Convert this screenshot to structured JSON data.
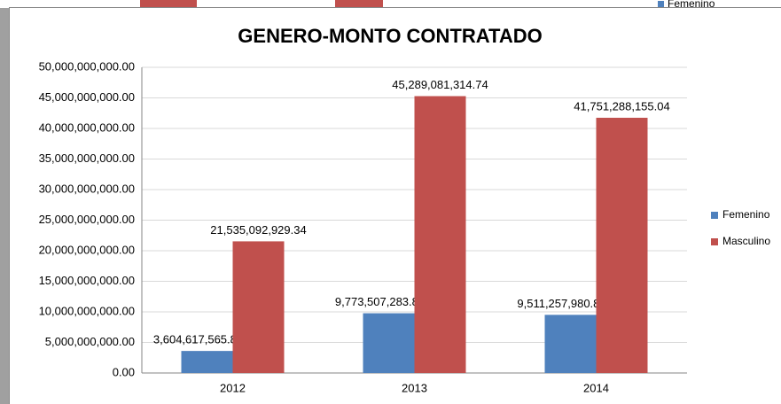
{
  "background": {
    "legend_label": "Femenino"
  },
  "chart_data": {
    "type": "bar",
    "title": "GENERO-MONTO CONTRATADO",
    "categories": [
      "2012",
      "2013",
      "2014"
    ],
    "series": [
      {
        "name": "Femenino",
        "color": "#4f81bd",
        "values": [
          3604617565.86,
          9773507283.8,
          9511257980.87
        ],
        "value_labels": [
          "3,604,617,565.86",
          "9,773,507,283.80",
          "9,511,257,980.87"
        ]
      },
      {
        "name": "Masculino",
        "color": "#c0504d",
        "values": [
          21535092929.34,
          45289081314.74,
          41751288155.04
        ],
        "value_labels": [
          "21,535,092,929.34",
          "45,289,081,314.74",
          "41,751,288,155.04"
        ]
      }
    ],
    "ylim": [
      0,
      50000000000
    ],
    "yticks": [
      {
        "value": 0,
        "label": "0.00"
      },
      {
        "value": 5000000000,
        "label": "5,000,000,000.00"
      },
      {
        "value": 10000000000,
        "label": "10,000,000,000.00"
      },
      {
        "value": 15000000000,
        "label": "15,000,000,000.00"
      },
      {
        "value": 20000000000,
        "label": "20,000,000,000.00"
      },
      {
        "value": 25000000000,
        "label": "25,000,000,000.00"
      },
      {
        "value": 30000000000,
        "label": "30,000,000,000.00"
      },
      {
        "value": 35000000000,
        "label": "35,000,000,000.00"
      },
      {
        "value": 40000000000,
        "label": "40,000,000,000.00"
      },
      {
        "value": 45000000000,
        "label": "45,000,000,000.00"
      },
      {
        "value": 50000000000,
        "label": "50,000,000,000.00"
      }
    ],
    "grid": true,
    "legend": "right"
  }
}
